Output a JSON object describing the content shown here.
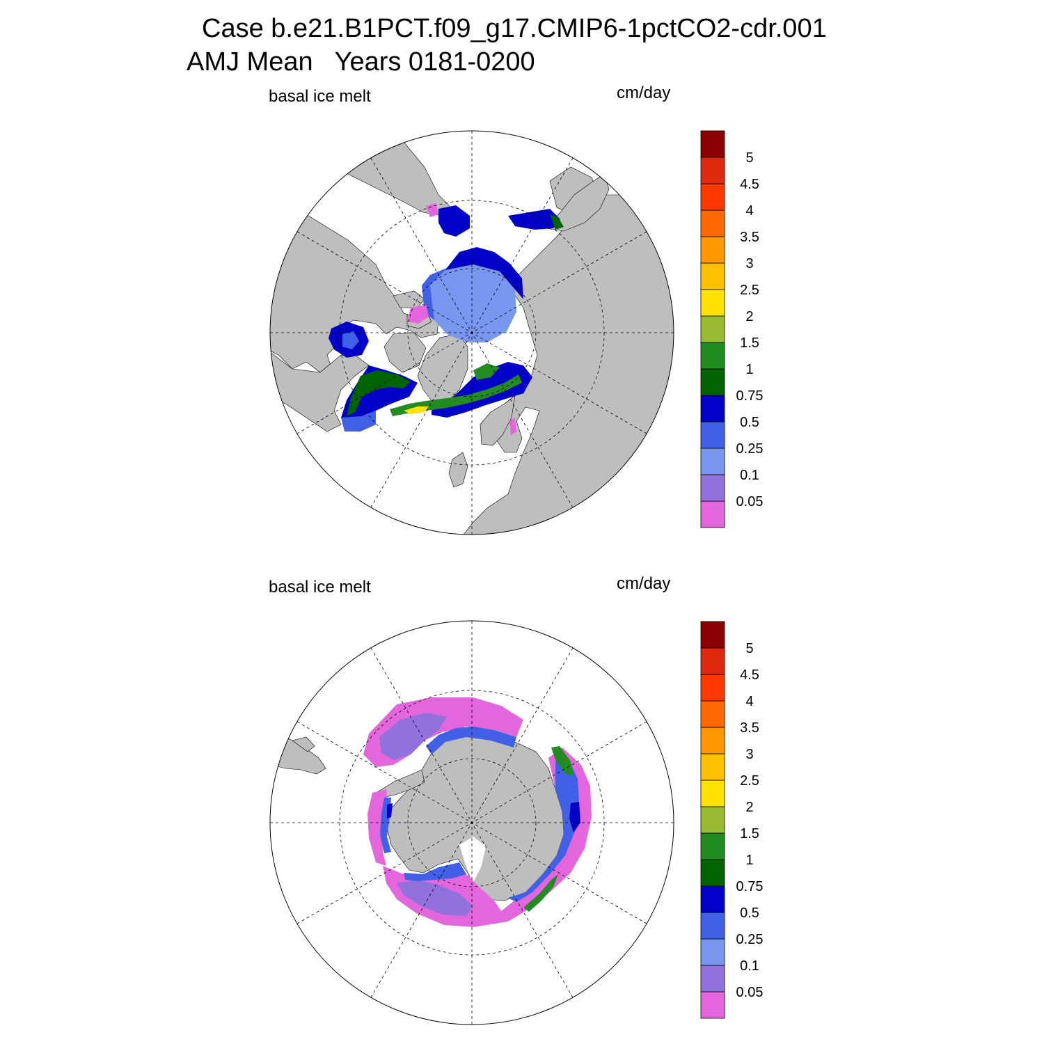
{
  "figure": {
    "title_line1": "Case b.e21.B1PCT.f09_g17.CMIP6-1pctCO2-cdr.001",
    "title_line2": "AMJ Mean   Years 0181-0200"
  },
  "colorbar": {
    "colors": [
      "#E466DC",
      "#9172DC",
      "#7898F0",
      "#4060E6",
      "#0000C8",
      "#006400",
      "#228B22",
      "#9ABB34",
      "#FFE100",
      "#FFC000",
      "#FF9800",
      "#FF6800",
      "#FF3800",
      "#DF2A10",
      "#8B0000"
    ],
    "levels": [
      "0.05",
      "0.1",
      "0.25",
      "0.5",
      "0.75",
      "1",
      "1.5",
      "2",
      "2.5",
      "3",
      "3.5",
      "4",
      "4.5",
      "5"
    ]
  },
  "palette": {
    "land": "#BEBEBE",
    "ocean": "#FFFFFF"
  },
  "panels": [
    {
      "id": "nh",
      "label_left": "basal ice melt",
      "label_right": "cm/day",
      "hemisphere": "north"
    },
    {
      "id": "sh",
      "label_left": "basal ice melt",
      "label_right": "cm/day",
      "hemisphere": "south"
    }
  ]
}
